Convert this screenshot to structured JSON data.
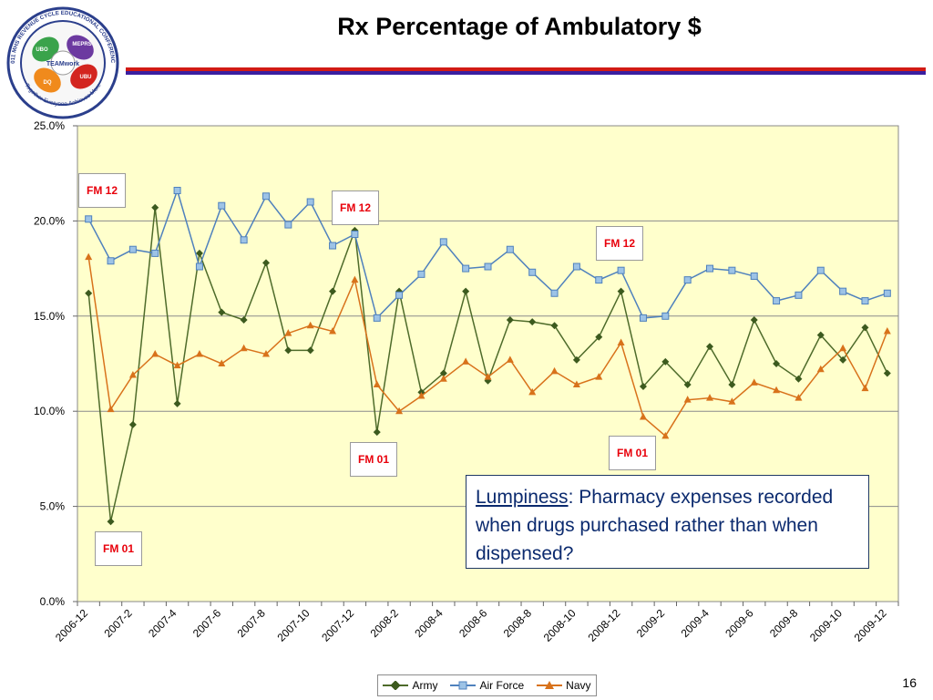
{
  "header": {
    "title": "Rx Percentage of Ambulatory $",
    "page_number": "16"
  },
  "logo": {
    "ring_text": "2011 MHS REVENUE CYCLE EDUCATIONAL CONFERENCE",
    "tagline": "Together Everyone Achieves More",
    "center_text": "TEAMwork",
    "hand_labels": [
      "UBO",
      "MEPRS",
      "UBU",
      "DQ"
    ]
  },
  "annotations": {
    "fm12_a": "FM 12",
    "fm12_b": "FM 12",
    "fm12_c": "FM 12",
    "fm01_a": "FM 01",
    "fm01_b": "FM 01",
    "fm01_c": "FM 01"
  },
  "callout": {
    "term": "Lumpiness",
    "text": ": Pharmacy expenses recorded when drugs purchased rather than when dispensed?"
  },
  "colors": {
    "plot_bg": "#ffffcc",
    "army": "#4e6b2a",
    "army_marker": "#3c5a1e",
    "air_force": "#4f81bd",
    "air_force_marker": "#9dc3e6",
    "navy": "#d8721b",
    "grid": "#8c8c8c"
  },
  "chart_data": {
    "type": "line",
    "title": "",
    "xlabel": "",
    "ylabel": "",
    "ylim": [
      0,
      25
    ],
    "yticks": [
      "0.0%",
      "5.0%",
      "10.0%",
      "15.0%",
      "20.0%",
      "25.0%"
    ],
    "grid": true,
    "legend": "bottom",
    "categories": [
      "2006-12",
      "2007-1",
      "2007-2",
      "2007-3",
      "2007-4",
      "2007-5",
      "2007-6",
      "2007-7",
      "2007-8",
      "2007-9",
      "2007-10",
      "2007-11",
      "2007-12",
      "2008-1",
      "2008-2",
      "2008-3",
      "2008-4",
      "2008-5",
      "2008-6",
      "2008-7",
      "2008-8",
      "2008-9",
      "2008-10",
      "2008-11",
      "2008-12",
      "2009-1",
      "2009-2",
      "2009-3",
      "2009-4",
      "2009-5",
      "2009-6",
      "2009-7",
      "2009-8",
      "2009-9",
      "2009-10",
      "2009-11",
      "2009-12"
    ],
    "tick_labels": [
      "2006-12",
      "2007-2",
      "2007-4",
      "2007-6",
      "2007-8",
      "2007-10",
      "2007-12",
      "2008-2",
      "2008-4",
      "2008-6",
      "2008-8",
      "2008-10",
      "2008-12",
      "2009-2",
      "2009-4",
      "2009-6",
      "2009-8",
      "2009-10",
      "2009-12"
    ],
    "series": [
      {
        "name": "Army",
        "values": [
          16.2,
          4.2,
          9.3,
          20.7,
          10.4,
          18.3,
          15.2,
          14.8,
          17.8,
          13.2,
          13.2,
          16.3,
          19.5,
          8.9,
          16.3,
          11.0,
          12.0,
          16.3,
          11.6,
          14.8,
          14.7,
          14.5,
          12.7,
          13.9,
          16.3,
          11.3,
          12.6,
          11.4,
          13.4,
          11.4,
          14.8,
          12.5,
          11.7,
          14.0,
          12.7,
          14.4,
          12.0
        ]
      },
      {
        "name": "Air Force",
        "values": [
          20.1,
          17.9,
          18.5,
          18.3,
          21.6,
          17.6,
          20.8,
          19.0,
          21.3,
          19.8,
          21.0,
          18.7,
          19.3,
          14.9,
          16.1,
          17.2,
          18.9,
          17.5,
          17.6,
          18.5,
          17.3,
          16.2,
          17.6,
          16.9,
          17.4,
          14.9,
          15.0,
          16.9,
          17.5,
          17.4,
          17.1,
          15.8,
          16.1,
          17.4,
          16.3,
          15.8,
          16.2
        ]
      },
      {
        "name": "Navy",
        "values": [
          18.1,
          10.1,
          11.9,
          13.0,
          12.4,
          13.0,
          12.5,
          13.3,
          13.0,
          14.1,
          14.5,
          14.2,
          16.9,
          11.4,
          10.0,
          10.8,
          11.7,
          12.6,
          11.8,
          12.7,
          11.0,
          12.1,
          11.4,
          11.8,
          13.6,
          9.7,
          8.7,
          10.6,
          10.7,
          10.5,
          11.5,
          11.1,
          10.7,
          12.2,
          13.3,
          11.2,
          14.2
        ]
      }
    ]
  }
}
